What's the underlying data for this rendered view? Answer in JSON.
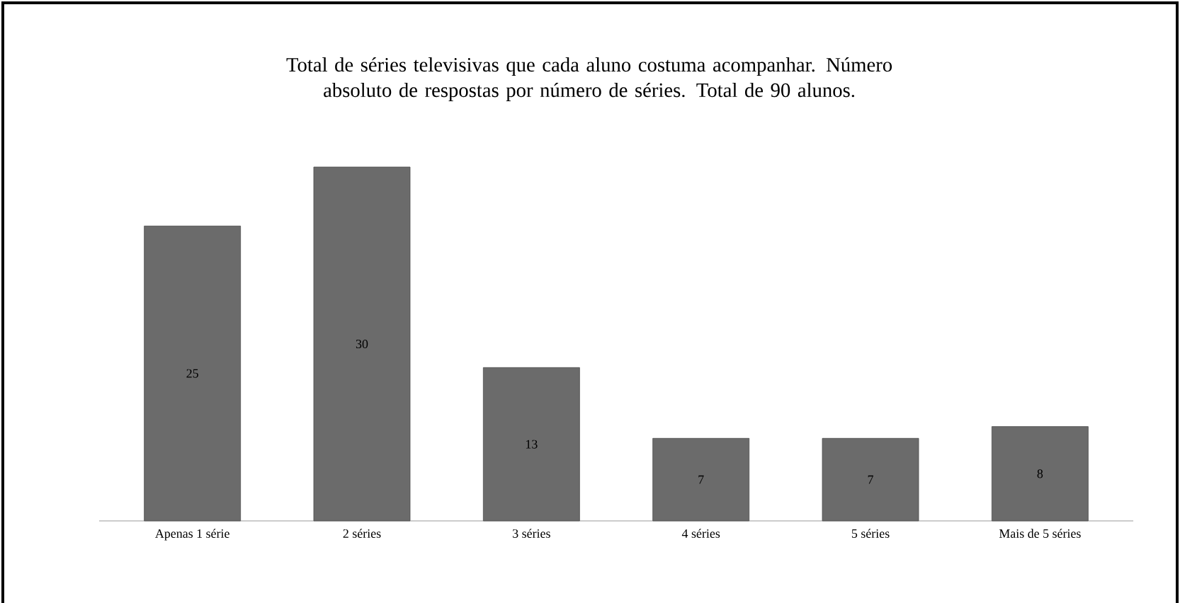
{
  "chart_data": {
    "type": "bar",
    "title": "Total de séries televisivas que cada aluno costuma acompanhar. Número absoluto de respostas por número de séries. Total de 90 alunos.",
    "categories": [
      "Apenas 1 série",
      "2 séries",
      "3 séries",
      "4 séries",
      "5 séries",
      "Mais de 5 séries"
    ],
    "values": [
      25,
      30,
      13,
      7,
      7,
      8
    ],
    "color": "#6b6b6b",
    "data_labels": true
  }
}
